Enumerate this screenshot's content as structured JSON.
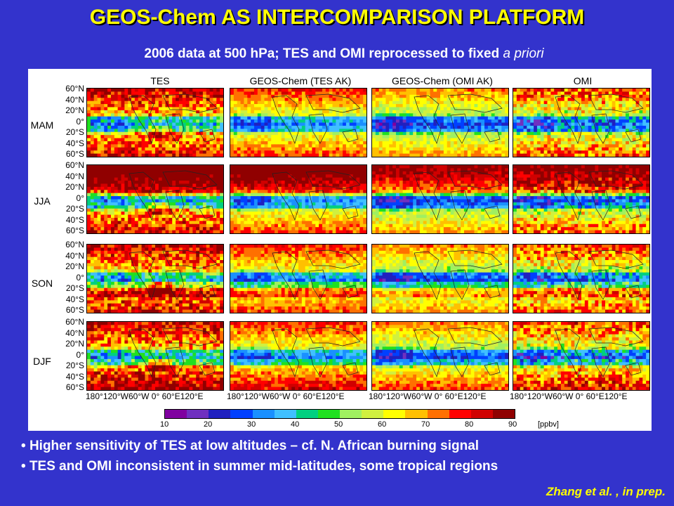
{
  "title": "GEOS-Chem AS INTERCOMPARISON PLATFORM",
  "subtitle_main": "2006 data at 500 hPa; TES and OMI reprocessed to fixed ",
  "subtitle_italic": "a priori",
  "columns": [
    "TES",
    "GEOS-Chem (TES AK)",
    "GEOS-Chem (OMI AK)",
    "OMI"
  ],
  "seasons": [
    "MAM",
    "JJA",
    "SON",
    "DJF"
  ],
  "lat_ticks": [
    "60°N",
    "40°N",
    "20°N",
    "0°",
    "20°S",
    "40°S",
    "60°S"
  ],
  "lon_ticks": "180°120°W60°W  0°   60°E120°E",
  "colorbar": {
    "ticks": [
      "10",
      "20",
      "30",
      "40",
      "50",
      "60",
      "70",
      "80",
      "90"
    ],
    "unit": "[ppbv]",
    "colors": [
      "#8000a0",
      "#7030c0",
      "#2020c0",
      "#0040ff",
      "#1a90ff",
      "#40c0ff",
      "#00d080",
      "#20e020",
      "#a0f060",
      "#d0f040",
      "#ffff00",
      "#ffc000",
      "#ff7000",
      "#ff0000",
      "#d00000",
      "#900000"
    ]
  },
  "bullets": [
    "Higher sensitivity of TES at low altitudes – cf. N. African burning signal",
    "TES and OMI inconsistent in summer mid-latitudes, some tropical regions"
  ],
  "credit": "Zhang et al. , in prep."
}
